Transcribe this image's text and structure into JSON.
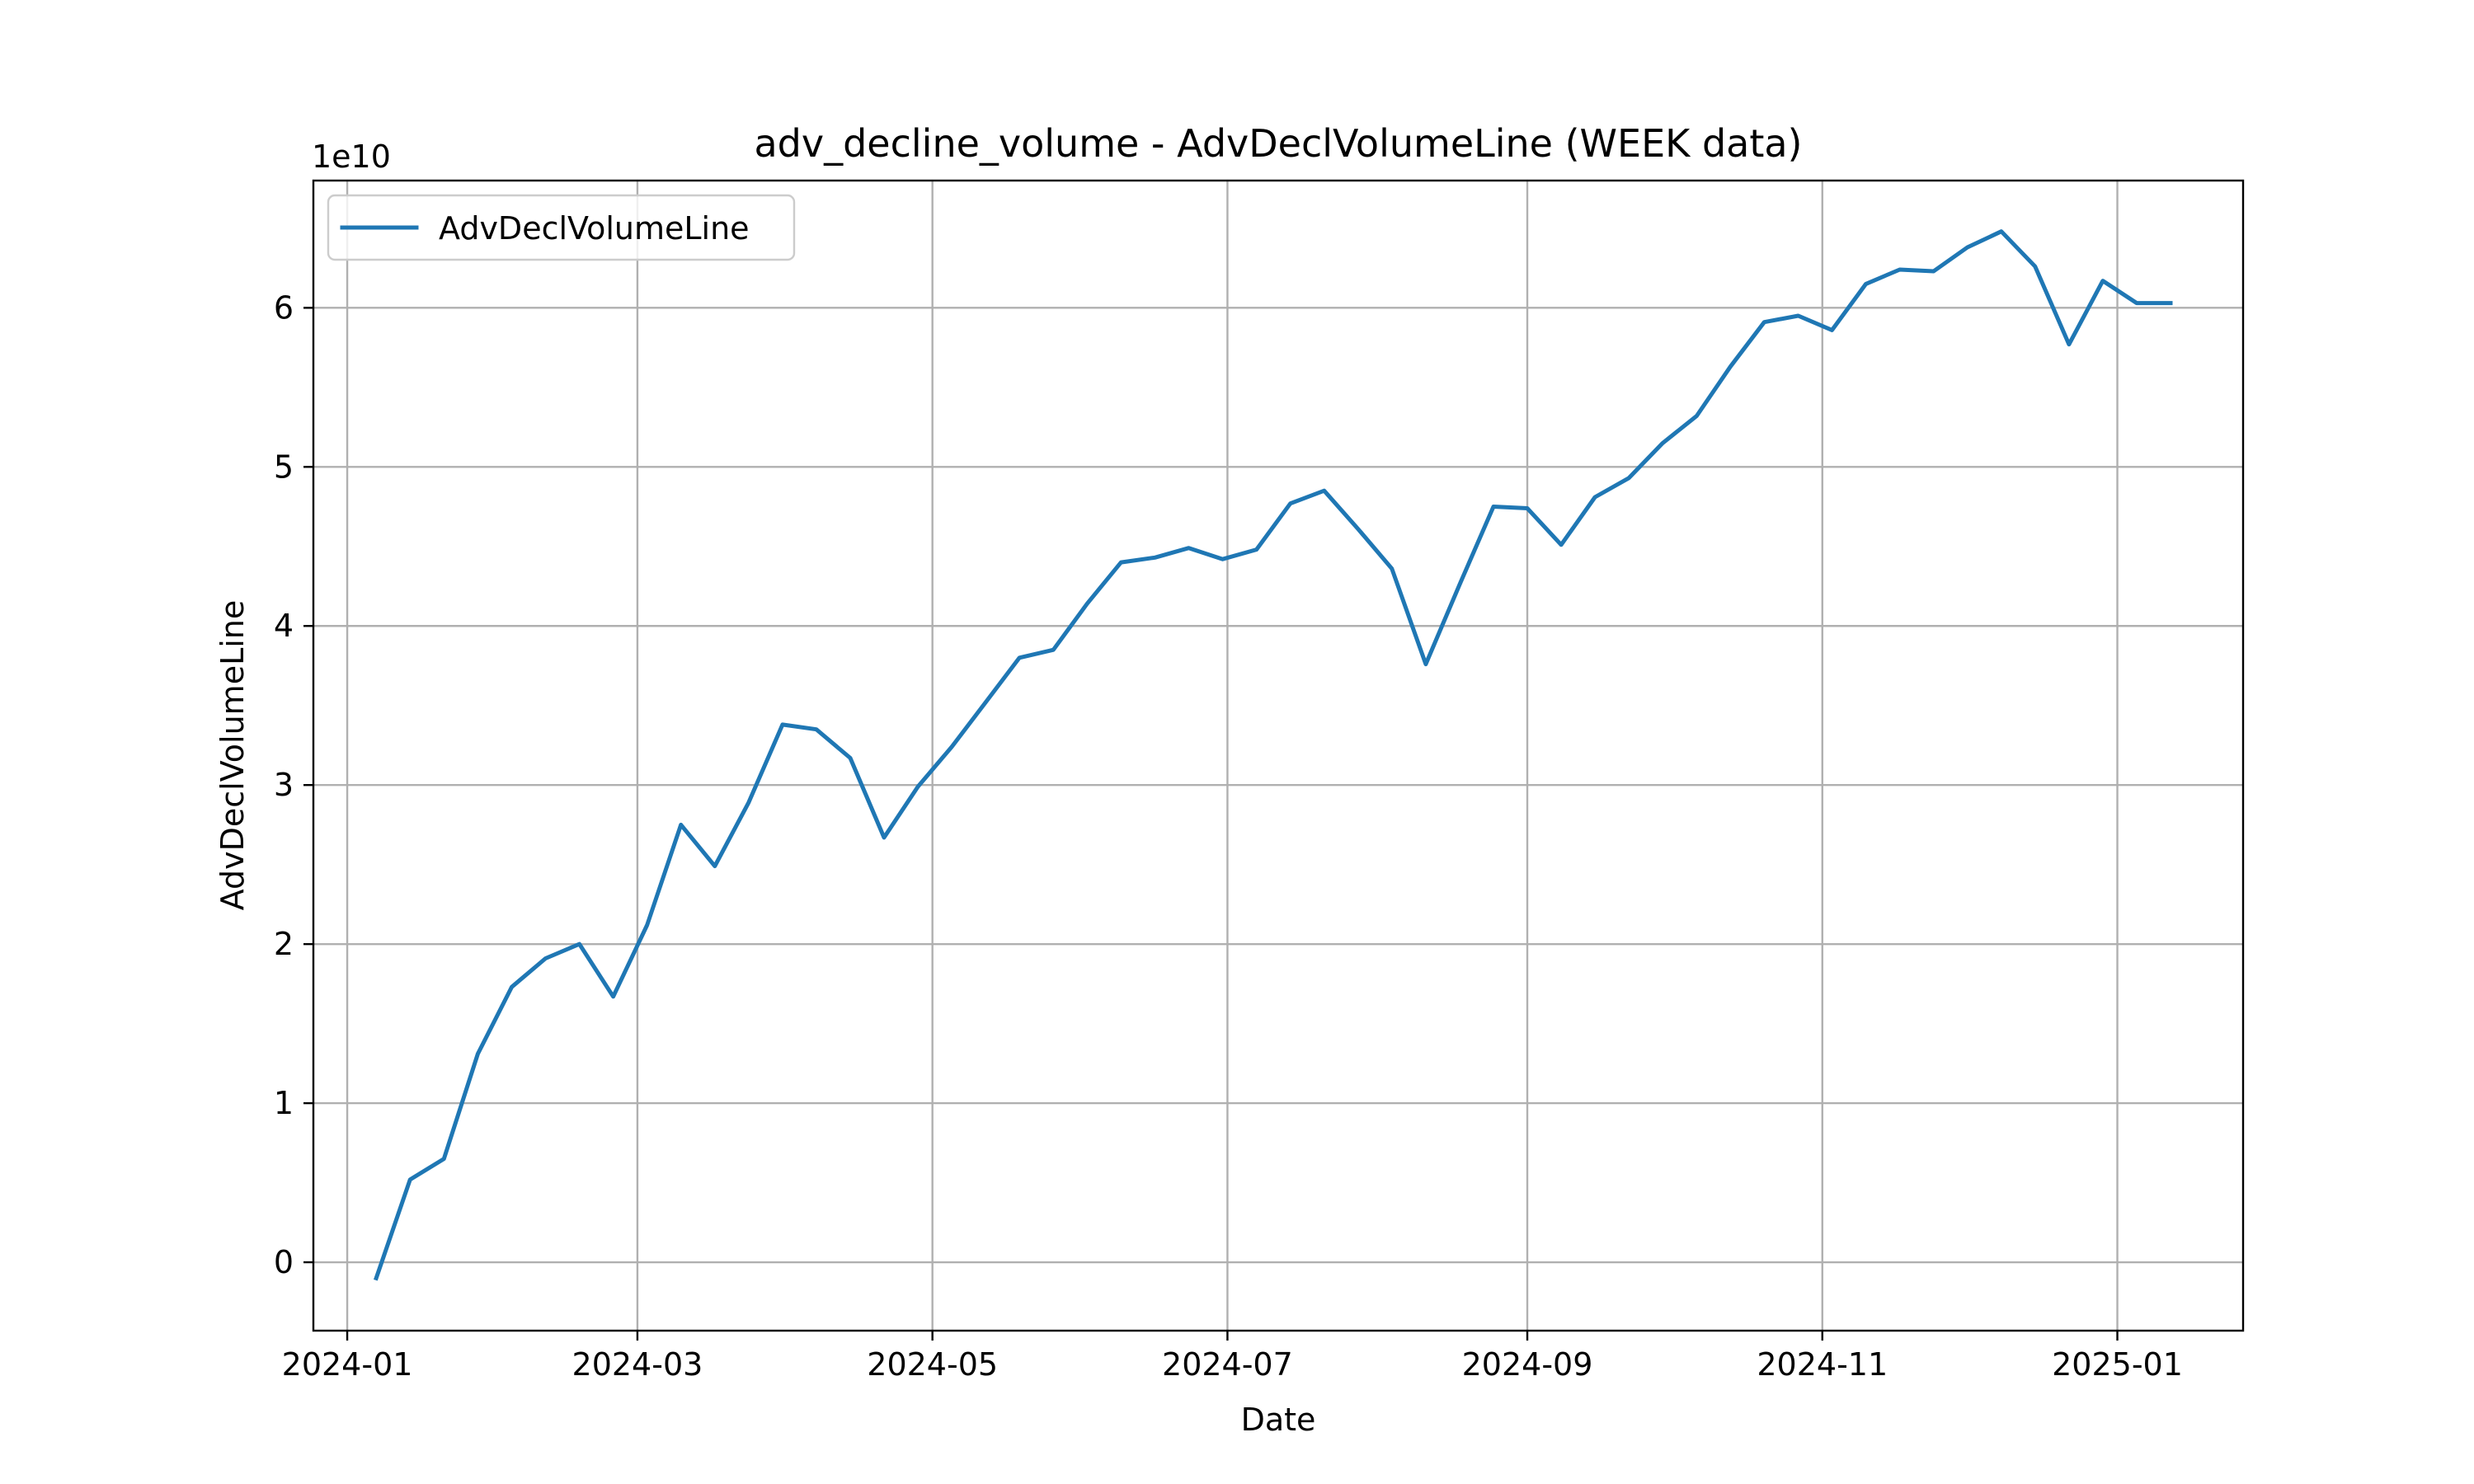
{
  "chart_data": {
    "type": "line",
    "title": "adv_decline_volume - AdvDeclVolumeLine (WEEK data)",
    "xlabel": "Date",
    "ylabel": "AdvDeclVolumeLine",
    "y_offset_label": "1e10",
    "y_scale_exponent": 10,
    "grid": true,
    "legend_position": "upper-left",
    "xlim": [
      "2023-12-25",
      "2025-01-27"
    ],
    "ylim": [
      -0.43,
      6.8
    ],
    "x_ticks": [
      "2024-01",
      "2024-03",
      "2024-05",
      "2024-07",
      "2024-09",
      "2024-11",
      "2025-01"
    ],
    "y_ticks": [
      "0",
      "1",
      "2",
      "3",
      "4",
      "5",
      "6"
    ],
    "series": [
      {
        "name": "AdvDeclVolumeLine",
        "color": "#1f77b4",
        "x": [
          "2024-01-07",
          "2024-01-14",
          "2024-01-21",
          "2024-01-28",
          "2024-02-04",
          "2024-02-11",
          "2024-02-18",
          "2024-02-25",
          "2024-03-03",
          "2024-03-10",
          "2024-03-17",
          "2024-03-24",
          "2024-03-31",
          "2024-04-07",
          "2024-04-14",
          "2024-04-21",
          "2024-04-28",
          "2024-05-05",
          "2024-05-12",
          "2024-05-19",
          "2024-05-26",
          "2024-06-02",
          "2024-06-09",
          "2024-06-16",
          "2024-06-23",
          "2024-06-30",
          "2024-07-07",
          "2024-07-14",
          "2024-07-21",
          "2024-07-28",
          "2024-08-04",
          "2024-08-11",
          "2024-08-18",
          "2024-08-25",
          "2024-09-01",
          "2024-09-08",
          "2024-09-15",
          "2024-09-22",
          "2024-09-29",
          "2024-10-06",
          "2024-10-13",
          "2024-10-20",
          "2024-10-27",
          "2024-11-03",
          "2024-11-10",
          "2024-11-17",
          "2024-11-24",
          "2024-12-01",
          "2024-12-08",
          "2024-12-15",
          "2024-12-22",
          "2024-12-29",
          "2025-01-05",
          "2025-01-12"
        ],
        "y": [
          -0.1,
          0.52,
          0.65,
          1.31,
          1.73,
          1.91,
          2.0,
          1.67,
          2.12,
          2.75,
          2.49,
          2.89,
          3.38,
          3.35,
          3.17,
          2.67,
          2.99,
          3.24,
          3.52,
          3.8,
          3.85,
          4.14,
          4.4,
          4.43,
          4.49,
          4.42,
          4.48,
          4.77,
          4.85,
          4.61,
          4.36,
          3.76,
          4.26,
          4.75,
          4.74,
          4.51,
          4.81,
          4.93,
          5.15,
          5.32,
          5.63,
          5.91,
          5.95,
          5.86,
          6.15,
          6.24,
          6.23,
          6.38,
          6.48,
          6.26,
          5.77,
          6.17,
          6.03,
          6.03
        ]
      }
    ]
  }
}
